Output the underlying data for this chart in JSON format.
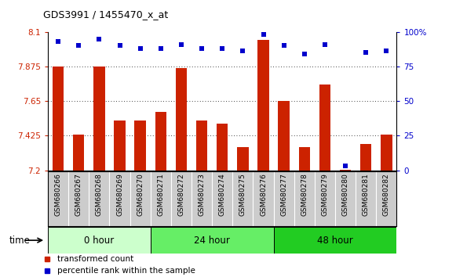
{
  "title": "GDS3991 / 1455470_x_at",
  "categories": [
    "GSM680266",
    "GSM680267",
    "GSM680268",
    "GSM680269",
    "GSM680270",
    "GSM680271",
    "GSM680272",
    "GSM680273",
    "GSM680274",
    "GSM680275",
    "GSM680276",
    "GSM680277",
    "GSM680278",
    "GSM680279",
    "GSM680280",
    "GSM680281",
    "GSM680282"
  ],
  "bar_values": [
    7.875,
    7.43,
    7.875,
    7.525,
    7.525,
    7.58,
    7.865,
    7.525,
    7.505,
    7.35,
    8.05,
    7.65,
    7.35,
    7.76,
    7.205,
    7.37,
    7.43
  ],
  "dot_values": [
    93,
    90,
    95,
    90,
    88,
    88,
    91,
    88,
    88,
    86,
    98,
    90,
    84,
    91,
    3,
    85,
    86
  ],
  "time_groups": [
    {
      "label": "0 hour",
      "start": 0,
      "end": 5,
      "color": "#ccffcc"
    },
    {
      "label": "24 hour",
      "start": 5,
      "end": 11,
      "color": "#66ee66"
    },
    {
      "label": "48 hour",
      "start": 11,
      "end": 17,
      "color": "#22cc22"
    }
  ],
  "ylim_left": [
    7.2,
    8.1
  ],
  "ylim_right": [
    0,
    100
  ],
  "yticks_left": [
    7.2,
    7.425,
    7.65,
    7.875,
    8.1
  ],
  "ytick_labels_left": [
    "7.2",
    "7.425",
    "7.65",
    "7.875",
    "8.1"
  ],
  "yticks_right": [
    0,
    25,
    50,
    75,
    100
  ],
  "ytick_labels_right": [
    "0",
    "25",
    "50",
    "75",
    "100%"
  ],
  "bar_color": "#cc2200",
  "dot_color": "#0000cc",
  "background_color": "#ffffff",
  "grid_ticks": [
    7.425,
    7.65,
    7.875
  ],
  "legend_items": [
    {
      "label": "transformed count",
      "color": "#cc2200"
    },
    {
      "label": "percentile rank within the sample",
      "color": "#0000cc"
    }
  ]
}
